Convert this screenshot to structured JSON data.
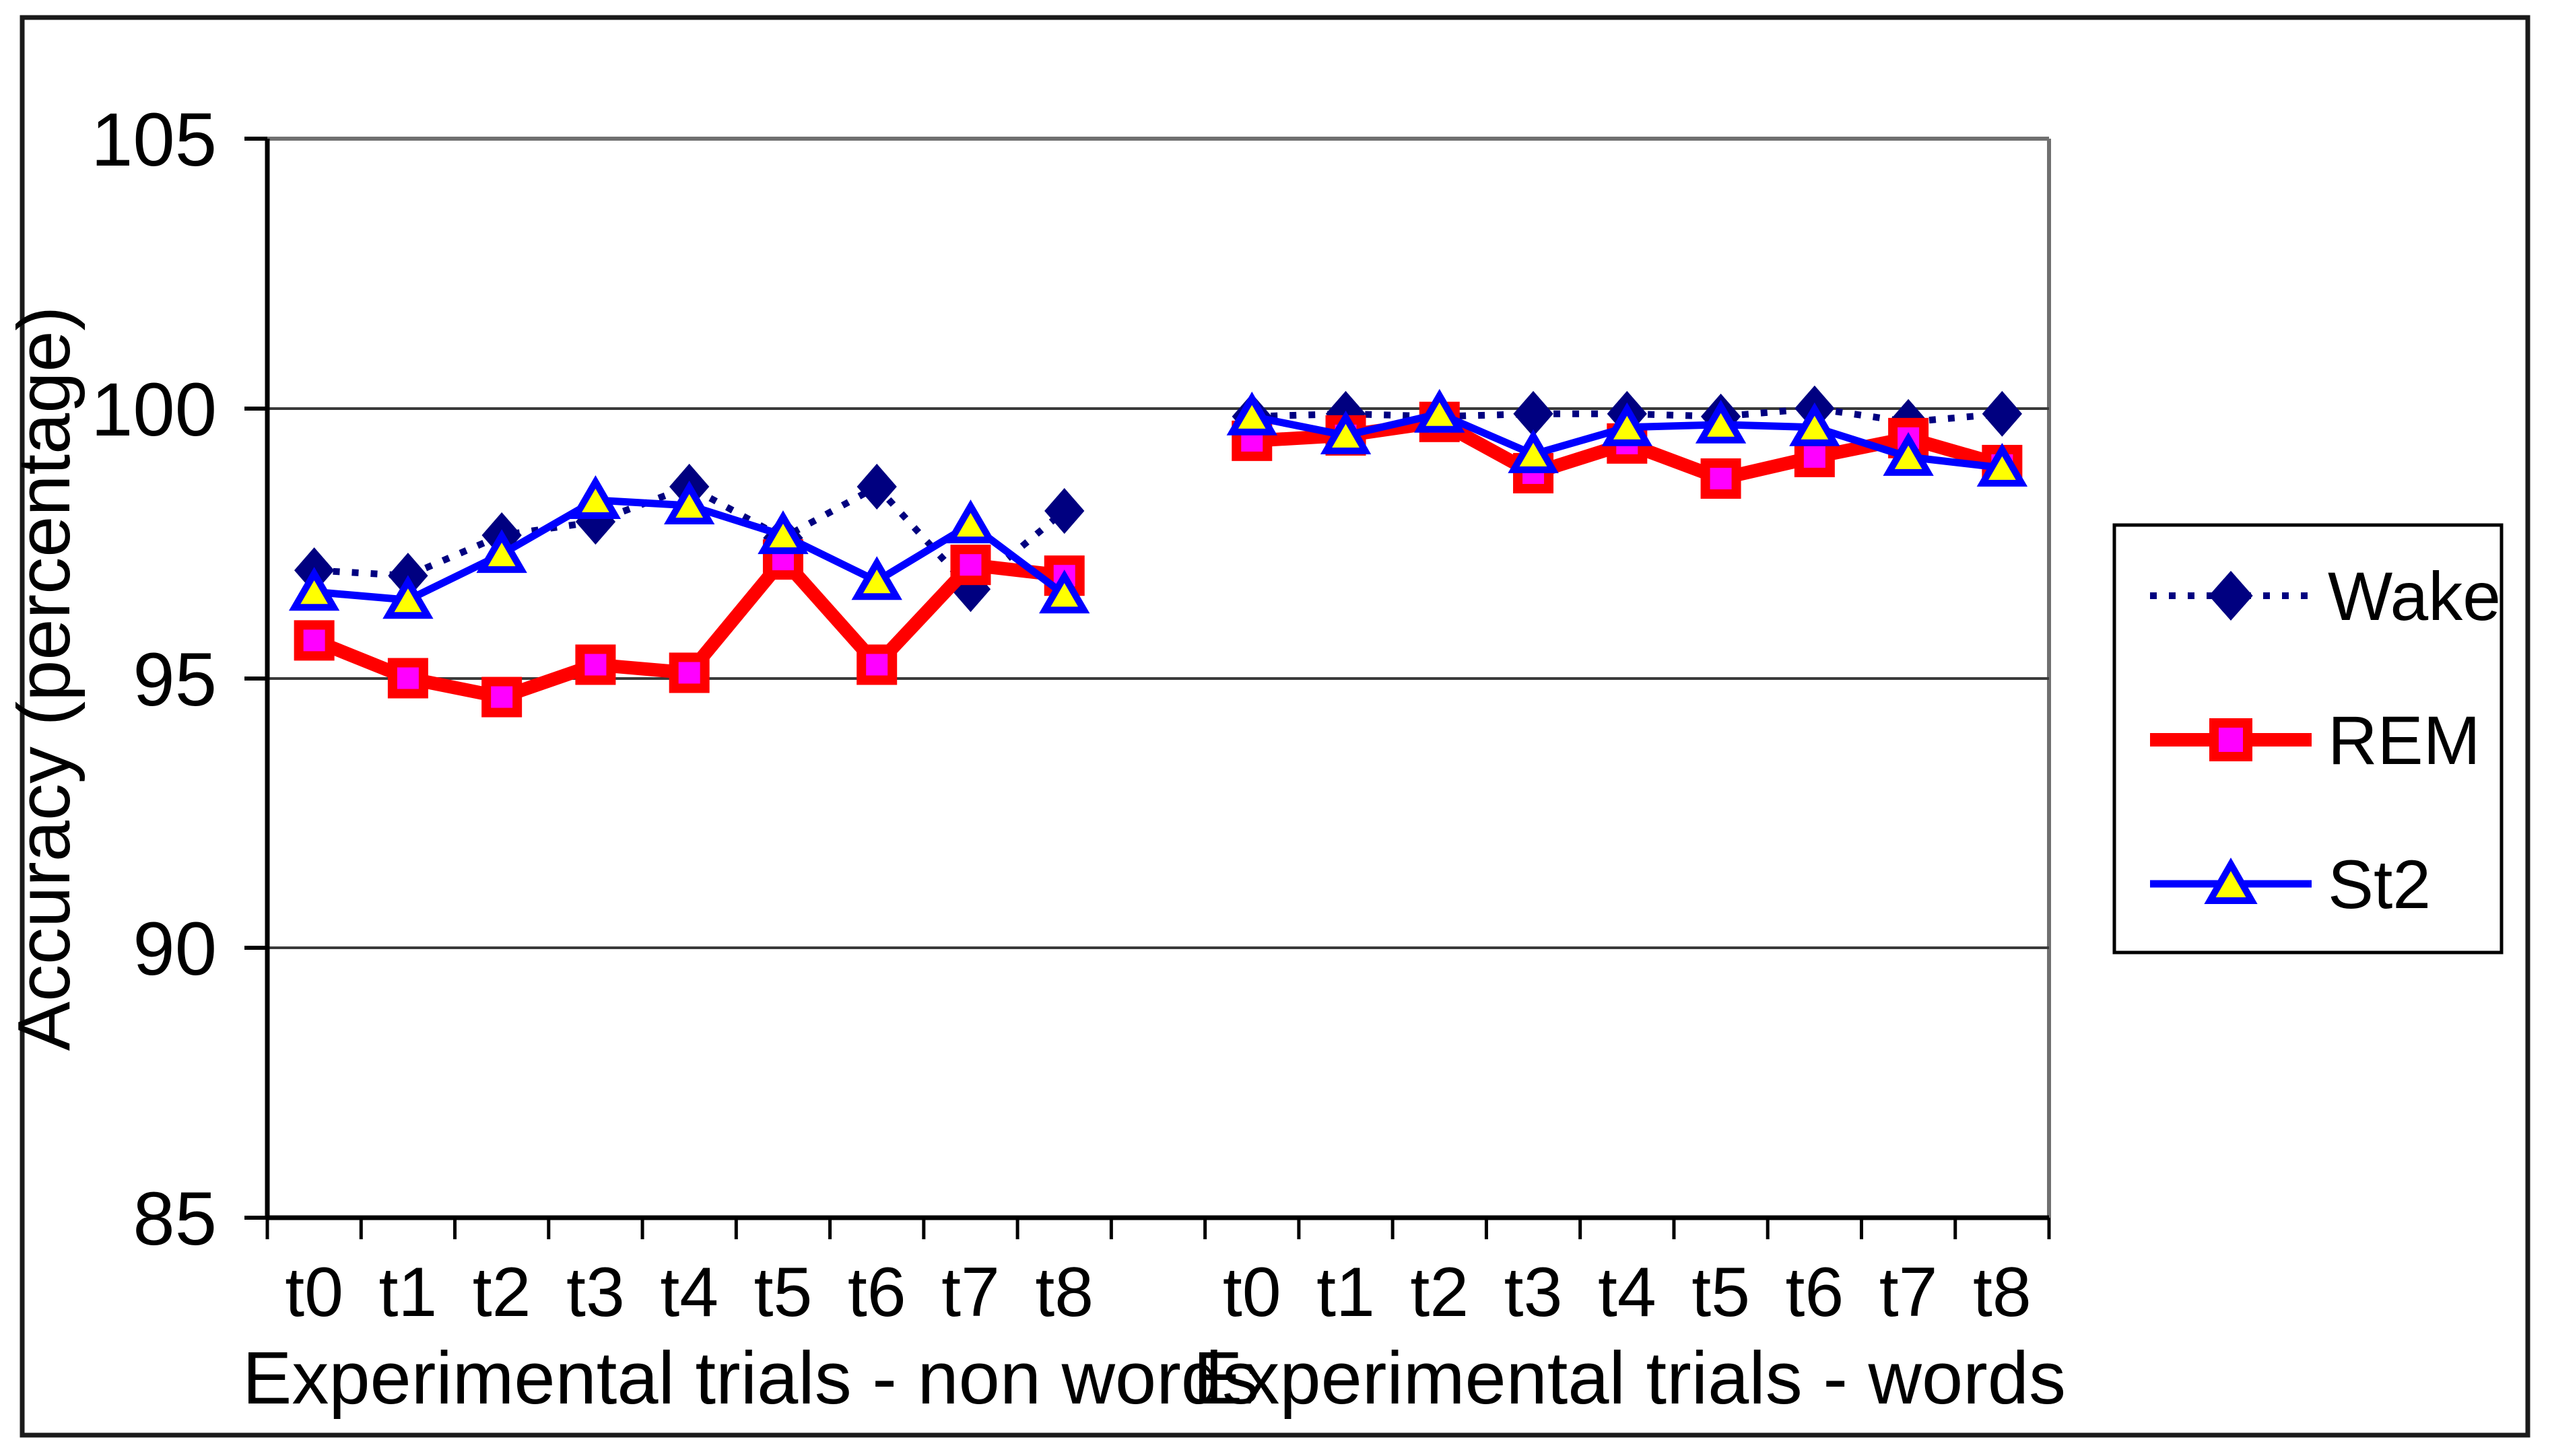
{
  "figure": {
    "background_color": "#FFFFFF",
    "border_color": "#1A1A1A"
  },
  "chart_data": {
    "type": "line",
    "title": "",
    "xlabel": "",
    "ylabel": "Accuracy (percentage)",
    "ylim": [
      85,
      105
    ],
    "yticks": [
      105,
      100,
      95,
      90,
      85
    ],
    "grid": "horizontal",
    "legend_position": "right",
    "groups": [
      {
        "label": "Experimental trials - non words",
        "categories": [
          "t0",
          "t1",
          "t2",
          "t3",
          "t4",
          "t5",
          "t6",
          "t7",
          "t8"
        ]
      },
      {
        "label": "Experimental trials - words",
        "categories": [
          "t0",
          "t1",
          "t2",
          "t3",
          "t4",
          "t5",
          "t6",
          "t7",
          "t8"
        ]
      }
    ],
    "series": [
      {
        "name": "Wake",
        "line_color": "#000080",
        "line_style": "dotted",
        "marker": "diamond",
        "marker_fill": "#000080",
        "marker_stroke": "#000080",
        "values_non_words": [
          97.0,
          96.9,
          97.65,
          97.9,
          98.55,
          97.6,
          98.55,
          96.65,
          98.1
        ],
        "values_words": [
          99.85,
          99.9,
          99.85,
          99.9,
          99.9,
          99.85,
          100.0,
          99.75,
          99.9
        ]
      },
      {
        "name": "REM",
        "line_color": "#FF0000",
        "line_style": "solid-thick",
        "marker": "square",
        "marker_fill": "#FF00FF",
        "marker_stroke": "#FF0000",
        "values_non_words": [
          95.7,
          95.0,
          94.65,
          95.25,
          95.1,
          97.2,
          95.25,
          97.1,
          96.9
        ],
        "values_words": [
          99.4,
          99.5,
          99.75,
          98.8,
          99.35,
          98.7,
          99.1,
          99.45,
          98.95
        ]
      },
      {
        "name": "St2",
        "line_color": "#0000FF",
        "line_style": "solid",
        "marker": "triangle",
        "marker_fill": "#FFFF00",
        "marker_stroke": "#0000FF",
        "values_non_words": [
          96.6,
          96.45,
          97.3,
          98.3,
          98.2,
          97.65,
          96.8,
          97.85,
          96.55
        ],
        "values_words": [
          99.85,
          99.5,
          99.9,
          99.15,
          99.65,
          99.7,
          99.65,
          99.1,
          98.9
        ]
      }
    ],
    "axis_colors": {
      "axis": "#000000",
      "gridline": "#3A3A3A",
      "plot_border": "#707070"
    }
  }
}
